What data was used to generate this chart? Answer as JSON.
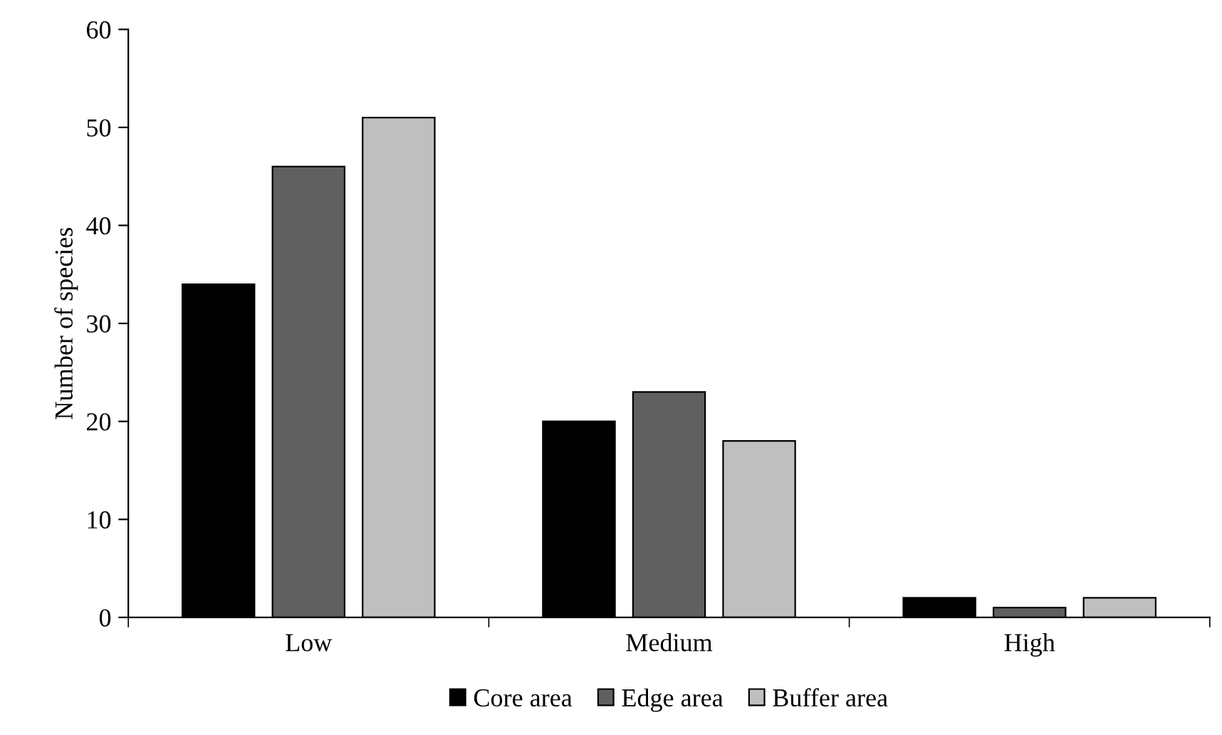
{
  "chart_data": {
    "type": "bar",
    "ylabel": "Number of species",
    "categories": [
      "Low",
      "Medium",
      "High"
    ],
    "series": [
      {
        "name": "Core area",
        "color": "#000000",
        "values": [
          34,
          20,
          2
        ]
      },
      {
        "name": "Edge area",
        "color": "#606060",
        "values": [
          46,
          23,
          1
        ]
      },
      {
        "name": "Buffer area",
        "color": "#bfbfbf",
        "values": [
          51,
          18,
          2
        ]
      }
    ],
    "ylim": [
      0,
      60
    ],
    "yticks": [
      0,
      10,
      20,
      30,
      40,
      50,
      60
    ],
    "grid": false,
    "legend": "bottom"
  }
}
